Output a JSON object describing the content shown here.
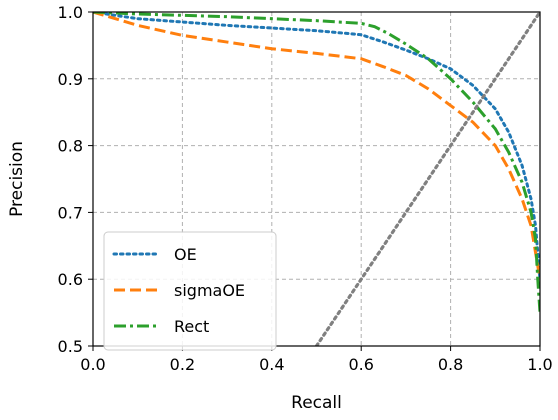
{
  "chart_data": {
    "type": "line",
    "title": "",
    "xlabel": "Recall",
    "ylabel": "Precision",
    "xlim": [
      0.0,
      1.0
    ],
    "ylim": [
      0.5,
      1.0
    ],
    "x_ticks": [
      "0.0",
      "0.2",
      "0.4",
      "0.6",
      "0.8",
      "1.0"
    ],
    "y_ticks": [
      "0.5",
      "0.6",
      "0.7",
      "0.8",
      "0.9",
      "1.0"
    ],
    "grid": true,
    "legend_position": "lower-left",
    "series": [
      {
        "name": "OE",
        "color": "#1f77b4",
        "style": "dotted",
        "points": [
          [
            0.0,
            1.0
          ],
          [
            0.05,
            0.995
          ],
          [
            0.1,
            0.99
          ],
          [
            0.2,
            0.985
          ],
          [
            0.3,
            0.98
          ],
          [
            0.4,
            0.976
          ],
          [
            0.5,
            0.972
          ],
          [
            0.6,
            0.966
          ],
          [
            0.65,
            0.955
          ],
          [
            0.7,
            0.943
          ],
          [
            0.75,
            0.93
          ],
          [
            0.8,
            0.915
          ],
          [
            0.85,
            0.89
          ],
          [
            0.9,
            0.855
          ],
          [
            0.93,
            0.82
          ],
          [
            0.96,
            0.77
          ],
          [
            0.98,
            0.72
          ],
          [
            0.99,
            0.68
          ],
          [
            0.995,
            0.64
          ],
          [
            1.0,
            0.6
          ]
        ]
      },
      {
        "name": "sigmaOE",
        "color": "#ff7f0e",
        "style": "dashed",
        "points": [
          [
            0.0,
            1.0
          ],
          [
            0.05,
            0.99
          ],
          [
            0.1,
            0.98
          ],
          [
            0.2,
            0.965
          ],
          [
            0.3,
            0.955
          ],
          [
            0.4,
            0.945
          ],
          [
            0.5,
            0.938
          ],
          [
            0.6,
            0.93
          ],
          [
            0.65,
            0.918
          ],
          [
            0.7,
            0.905
          ],
          [
            0.75,
            0.885
          ],
          [
            0.8,
            0.86
          ],
          [
            0.85,
            0.835
          ],
          [
            0.9,
            0.8
          ],
          [
            0.93,
            0.765
          ],
          [
            0.96,
            0.72
          ],
          [
            0.98,
            0.68
          ],
          [
            0.99,
            0.64
          ],
          [
            1.0,
            0.6
          ]
        ]
      },
      {
        "name": "Rect",
        "color": "#2ca02c",
        "style": "dashdot",
        "points": [
          [
            0.0,
            1.0
          ],
          [
            0.1,
            0.997
          ],
          [
            0.2,
            0.995
          ],
          [
            0.3,
            0.993
          ],
          [
            0.4,
            0.99
          ],
          [
            0.5,
            0.987
          ],
          [
            0.6,
            0.983
          ],
          [
            0.63,
            0.978
          ],
          [
            0.66,
            0.968
          ],
          [
            0.7,
            0.952
          ],
          [
            0.75,
            0.93
          ],
          [
            0.8,
            0.9
          ],
          [
            0.85,
            0.865
          ],
          [
            0.9,
            0.825
          ],
          [
            0.93,
            0.79
          ],
          [
            0.96,
            0.745
          ],
          [
            0.98,
            0.7
          ],
          [
            0.99,
            0.66
          ],
          [
            0.995,
            0.6
          ],
          [
            1.0,
            0.55
          ]
        ]
      },
      {
        "name": "",
        "color": "#808080",
        "style": "dotted",
        "points": [
          [
            0.5,
            0.5
          ],
          [
            1.0,
            1.0
          ]
        ]
      }
    ]
  }
}
